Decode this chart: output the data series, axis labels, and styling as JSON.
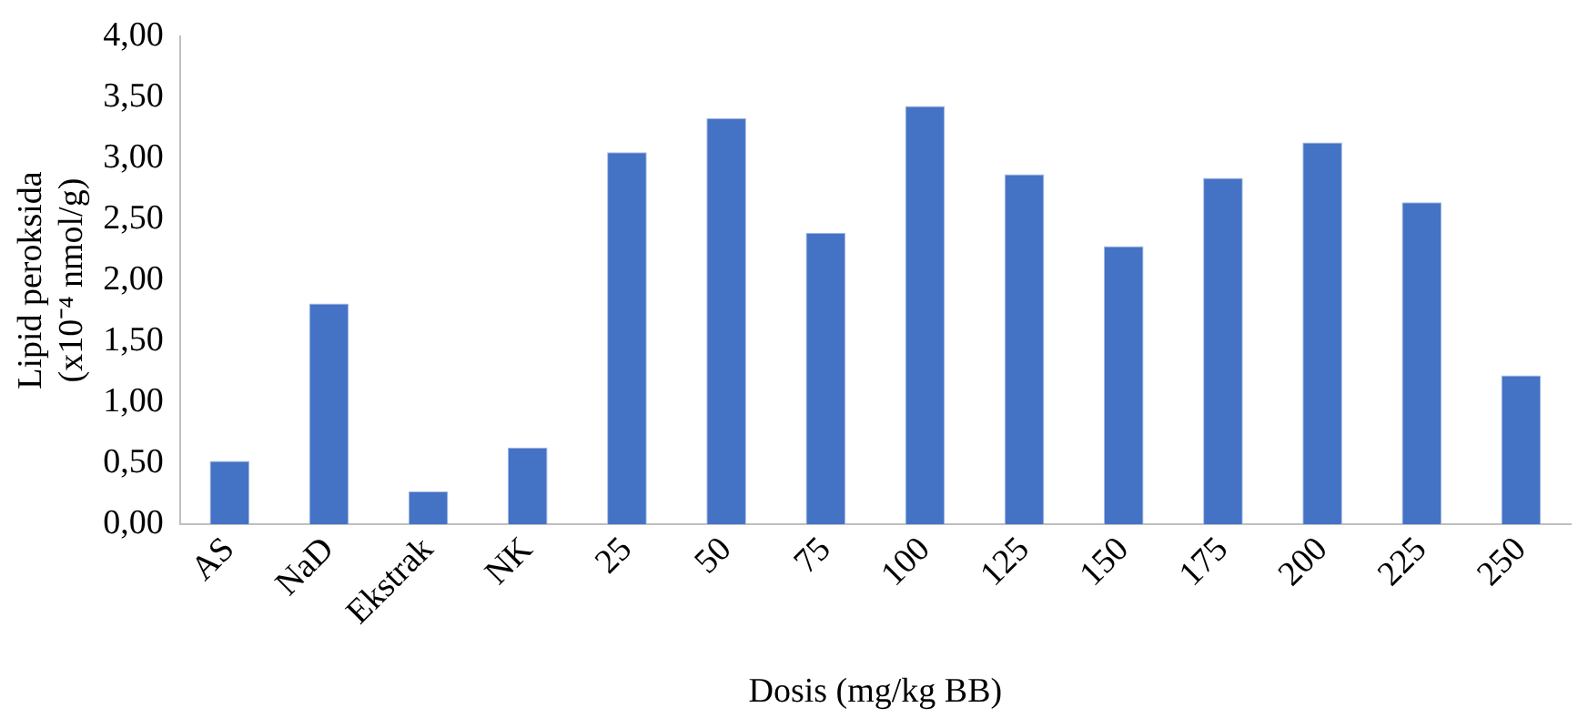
{
  "chart_data": {
    "type": "bar",
    "xlabel": "Dosis (mg/kg BB)",
    "ylabel": "Lipid peroksida\n(x10⁻⁴ nmol/g)",
    "categories": [
      "AS",
      "NaD",
      "Ekstrak",
      "NK",
      "25",
      "50",
      "75",
      "100",
      "125",
      "150",
      "175",
      "200",
      "225",
      "250"
    ],
    "values": [
      0.52,
      1.81,
      0.27,
      0.63,
      3.05,
      3.33,
      2.39,
      3.43,
      2.87,
      2.28,
      2.84,
      3.13,
      2.64,
      1.22
    ],
    "color": "#4472c4",
    "ylim": [
      0,
      4
    ],
    "yticks": [
      {
        "value": 0,
        "label": "0,00"
      },
      {
        "value": 0.5,
        "label": "0,50"
      },
      {
        "value": 1,
        "label": "1,00"
      },
      {
        "value": 1.5,
        "label": "1,50"
      },
      {
        "value": 2,
        "label": "2,00"
      },
      {
        "value": 2.5,
        "label": "2,50"
      },
      {
        "value": 3,
        "label": "3,00"
      },
      {
        "value": 3.5,
        "label": "3,50"
      },
      {
        "value": 4,
        "label": "4,00"
      }
    ],
    "grid": false,
    "legend": false
  }
}
